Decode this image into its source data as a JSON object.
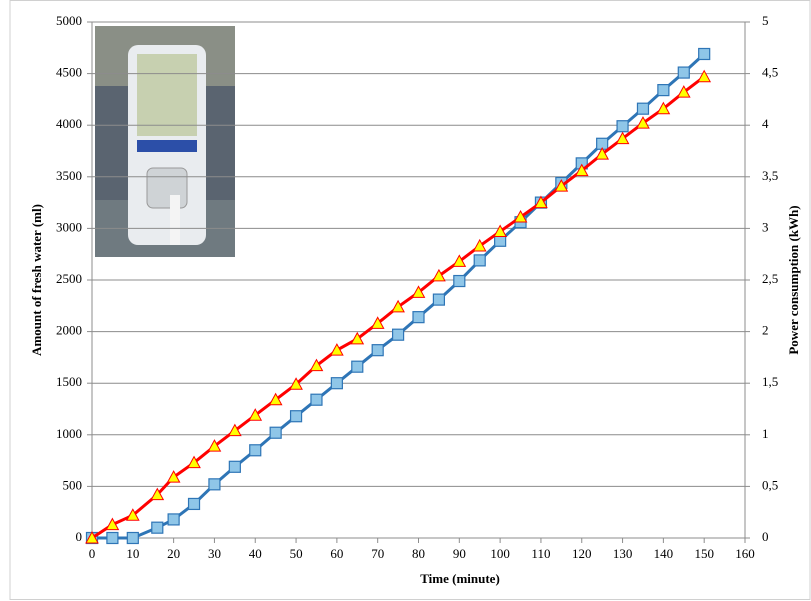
{
  "chart_data": {
    "type": "line",
    "x_label": "Time (minute)",
    "y_label": "Amount of fresh water (ml)",
    "y2_label": "Power consumption (kWh)",
    "x": [
      0,
      5,
      10,
      16,
      20,
      25,
      30,
      35,
      40,
      45,
      50,
      55,
      60,
      65,
      70,
      75,
      80,
      85,
      90,
      95,
      100,
      105,
      110,
      115,
      120,
      125,
      130,
      135,
      140,
      145,
      150
    ],
    "series": [
      {
        "color": "#2e75b6",
        "marker_fill": "#8fc6e8",
        "marker": "square",
        "axis": "y",
        "values": [
          0,
          0,
          0,
          100,
          180,
          330,
          520,
          690,
          850,
          1020,
          1180,
          1340,
          1500,
          1660,
          1820,
          1970,
          2140,
          2310,
          2490,
          2690,
          2880,
          3060,
          3250,
          3440,
          3630,
          3820,
          3990,
          4160,
          4340,
          4510,
          4690
        ]
      },
      {
        "color": "#ff0000",
        "marker_fill": "#ffff00",
        "marker": "triangle",
        "axis": "y2",
        "values": [
          0,
          0.13,
          0.22,
          0.42,
          0.59,
          0.73,
          0.89,
          1.04,
          1.19,
          1.34,
          1.49,
          1.67,
          1.82,
          1.93,
          2.08,
          2.24,
          2.38,
          2.54,
          2.68,
          2.83,
          2.97,
          3.11,
          3.25,
          3.41,
          3.56,
          3.72,
          3.87,
          4.02,
          4.16,
          4.32,
          4.47
        ]
      }
    ],
    "xlim": [
      0,
      160
    ],
    "xticks": [
      0,
      10,
      20,
      30,
      40,
      50,
      60,
      70,
      80,
      90,
      100,
      110,
      120,
      130,
      140,
      150,
      160
    ],
    "ylim": [
      0,
      5000
    ],
    "yticks": [
      0,
      500,
      1000,
      1500,
      2000,
      2500,
      3000,
      3500,
      4000,
      4500,
      5000
    ],
    "y2lim": [
      0,
      5
    ],
    "y2ticks": [
      0,
      {
        "value": 0.5,
        "label": "0,5"
      },
      1,
      {
        "value": 1.5,
        "label": "1,5"
      },
      2,
      {
        "value": 2.5,
        "label": "2,5"
      },
      3,
      {
        "value": 3.5,
        "label": "3,5"
      },
      4,
      {
        "value": 4.5,
        "label": "4,5"
      },
      5
    ],
    "grid": true
  }
}
